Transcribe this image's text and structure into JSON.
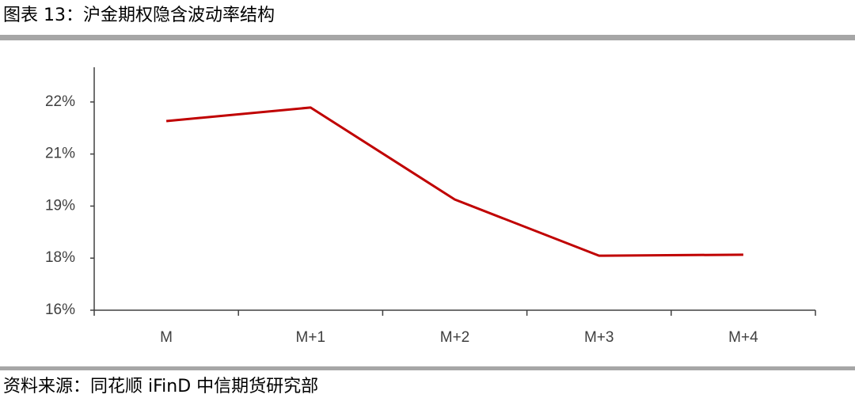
{
  "chart_data": {
    "type": "line",
    "title": "图表 13：沪金期权隐含波动率结构",
    "source": "资料来源：同花顺 iFinD 中信期货研究部",
    "categories": [
      "M",
      "M+1",
      "M+2",
      "M+3",
      "M+4"
    ],
    "values": [
      21.45,
      21.84,
      19.19,
      17.57,
      17.6
    ],
    "color": "#c00000",
    "ylim": [
      16,
      23
    ],
    "yticks": [
      {
        "value": 16,
        "label": "16%"
      },
      {
        "value": 17.5,
        "label": "18%"
      },
      {
        "value": 19,
        "label": "19%"
      },
      {
        "value": 20.5,
        "label": "21%"
      },
      {
        "value": 22,
        "label": "22%"
      }
    ],
    "grid": false
  }
}
